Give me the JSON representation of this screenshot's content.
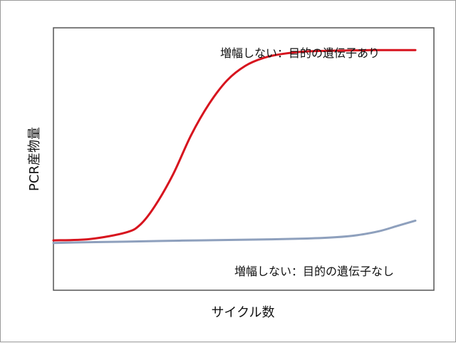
{
  "chart_data": {
    "type": "line",
    "xlabel": "サイクル数",
    "ylabel": "PCR産物量",
    "xlim": [
      0,
      100
    ],
    "ylim": [
      0,
      100
    ],
    "grid": false,
    "legend": "none",
    "series": [
      {
        "name": "増幅しない：目的の遺伝子あり",
        "color": "#d7141e",
        "x": [
          0,
          10,
          20,
          24,
          28,
          33,
          38,
          43,
          48,
          53,
          58,
          63,
          70,
          78,
          88,
          100
        ],
        "y": [
          19.0,
          19.5,
          22.0,
          25.0,
          32.0,
          44.0,
          59.0,
          71.0,
          80.0,
          85.5,
          88.5,
          90.0,
          91.0,
          91.3,
          91.5,
          91.5
        ]
      },
      {
        "name": "増幅しない：目的の遺伝子なし",
        "color": "#8ea0bd",
        "x": [
          0,
          10,
          20,
          30,
          40,
          50,
          60,
          70,
          78,
          84,
          90,
          95,
          100
        ],
        "y": [
          18.0,
          18.3,
          18.5,
          18.8,
          19.0,
          19.2,
          19.4,
          19.7,
          20.2,
          21.0,
          22.5,
          24.5,
          26.5
        ]
      }
    ]
  }
}
